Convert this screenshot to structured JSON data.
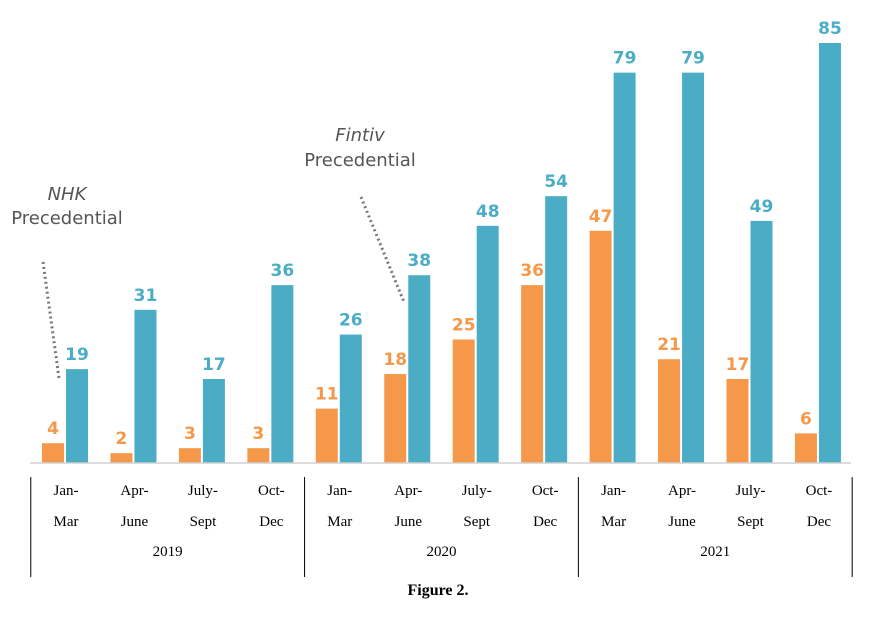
{
  "chart_data": {
    "type": "bar",
    "categories": [
      [
        "Jan-",
        "Mar"
      ],
      [
        "Apr-",
        "June"
      ],
      [
        "July-",
        "Sept"
      ],
      [
        "Oct-",
        "Dec"
      ],
      [
        "Jan-",
        "Mar"
      ],
      [
        "Apr-",
        "June"
      ],
      [
        "July-",
        "Sept"
      ],
      [
        "Oct-",
        "Dec"
      ],
      [
        "Jan-",
        "Mar"
      ],
      [
        "Apr-",
        "June"
      ],
      [
        "July-",
        "Sept"
      ],
      [
        "Oct-",
        "Dec"
      ]
    ],
    "groups": [
      "2019",
      "2020",
      "2021"
    ],
    "series": [
      {
        "color": "#f5984a",
        "values": [
          4,
          2,
          3,
          3,
          11,
          18,
          25,
          36,
          47,
          21,
          17,
          6
        ]
      },
      {
        "color": "#4badc5",
        "values": [
          19,
          31,
          17,
          36,
          26,
          38,
          48,
          54,
          79,
          79,
          49,
          85
        ]
      }
    ],
    "ylim": [
      0,
      85
    ],
    "grid": false,
    "annotations": [
      {
        "italic": "NHK",
        "text": "Precedential",
        "category_index": 0
      },
      {
        "italic": "Fintiv",
        "text": "Precedential",
        "category_index": 5
      }
    ],
    "caption": "Figure 2."
  }
}
